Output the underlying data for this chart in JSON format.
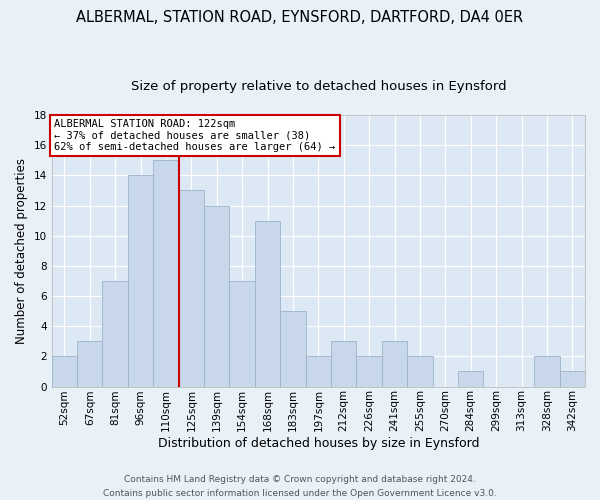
{
  "title": "ALBERMAL, STATION ROAD, EYNSFORD, DARTFORD, DA4 0ER",
  "subtitle": "Size of property relative to detached houses in Eynsford",
  "xlabel": "Distribution of detached houses by size in Eynsford",
  "ylabel": "Number of detached properties",
  "footer_line1": "Contains HM Land Registry data © Crown copyright and database right 2024.",
  "footer_line2": "Contains public sector information licensed under the Open Government Licence v3.0.",
  "bar_labels": [
    "52sqm",
    "67sqm",
    "81sqm",
    "96sqm",
    "110sqm",
    "125sqm",
    "139sqm",
    "154sqm",
    "168sqm",
    "183sqm",
    "197sqm",
    "212sqm",
    "226sqm",
    "241sqm",
    "255sqm",
    "270sqm",
    "284sqm",
    "299sqm",
    "313sqm",
    "328sqm",
    "342sqm"
  ],
  "bar_values": [
    2,
    3,
    7,
    14,
    15,
    13,
    12,
    7,
    11,
    5,
    2,
    3,
    2,
    3,
    2,
    0,
    1,
    0,
    0,
    2,
    1
  ],
  "bar_color": "#c8d8ea",
  "bar_edgecolor": "#9ab4cc",
  "ref_line_x": 4.5,
  "annotation_title": "ALBERMAL STATION ROAD: 122sqm",
  "annotation_line1": "← 37% of detached houses are smaller (38)",
  "annotation_line2": "62% of semi-detached houses are larger (64) →",
  "annotation_box_color": "#ffffff",
  "annotation_box_edgecolor": "#cc0000",
  "ref_line_color": "#cc0000",
  "ylim": [
    0,
    18
  ],
  "yticks": [
    0,
    2,
    4,
    6,
    8,
    10,
    12,
    14,
    16,
    18
  ],
  "bg_color": "#e8f0f8",
  "plot_bg_color": "#dce8f4",
  "title_fontsize": 10.5,
  "subtitle_fontsize": 9.5,
  "footer_fontsize": 6.5,
  "xlabel_fontsize": 9,
  "ylabel_fontsize": 8.5,
  "tick_fontsize": 7.5
}
